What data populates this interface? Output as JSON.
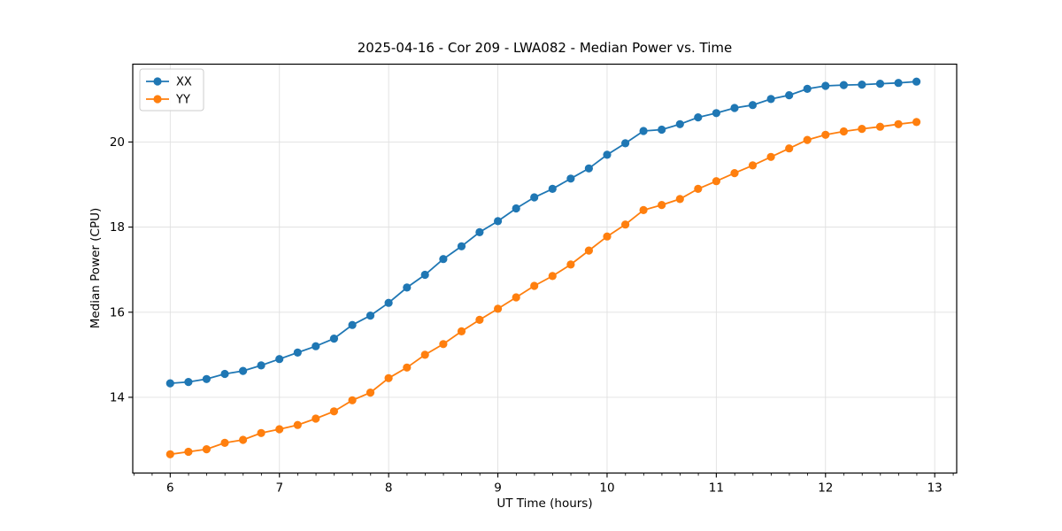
{
  "chart_data": {
    "type": "line",
    "title": "2025-04-16 - Cor 209 - LWA082 - Median Power vs. Time",
    "xlabel": "UT Time (hours)",
    "ylabel": "Median Power (CPU)",
    "xlim": [
      5.657,
      13.201
    ],
    "ylim": [
      12.22,
      21.83
    ],
    "xticks": [
      6,
      7,
      8,
      9,
      10,
      11,
      12,
      13
    ],
    "yticks": [
      14,
      16,
      18,
      20
    ],
    "x_minor_step": 0.1667,
    "grid": true,
    "grid_color": "#e0e0e0",
    "frame_color": "#000000",
    "legend_position": "upper-left",
    "x": [
      6.0,
      6.167,
      6.333,
      6.5,
      6.667,
      6.833,
      7.0,
      7.167,
      7.333,
      7.5,
      7.667,
      7.833,
      8.0,
      8.167,
      8.333,
      8.5,
      8.667,
      8.833,
      9.0,
      9.167,
      9.333,
      9.5,
      9.667,
      9.833,
      10.0,
      10.167,
      10.333,
      10.5,
      10.667,
      10.833,
      11.0,
      11.167,
      11.333,
      11.5,
      11.667,
      11.833,
      12.0,
      12.167,
      12.333,
      12.5,
      12.667,
      12.833
    ],
    "series": [
      {
        "name": "XX",
        "color": "#1f77b4",
        "marker": "circle",
        "values": [
          14.33,
          14.36,
          14.43,
          14.55,
          14.62,
          14.75,
          14.9,
          15.05,
          15.2,
          15.38,
          15.7,
          15.92,
          16.22,
          16.58,
          16.88,
          17.25,
          17.55,
          17.88,
          18.14,
          18.44,
          18.7,
          18.9,
          19.14,
          19.38,
          19.7,
          19.97,
          20.26,
          20.29,
          20.42,
          20.58,
          20.68,
          20.8,
          20.87,
          21.01,
          21.1,
          21.25,
          21.32,
          21.34,
          21.35,
          21.37,
          21.39,
          21.42
        ]
      },
      {
        "name": "YY",
        "color": "#ff7f0e",
        "marker": "circle",
        "values": [
          12.66,
          12.72,
          12.78,
          12.93,
          13.0,
          13.16,
          13.25,
          13.35,
          13.5,
          13.67,
          13.93,
          14.11,
          14.45,
          14.7,
          15.0,
          15.25,
          15.55,
          15.82,
          16.08,
          16.35,
          16.62,
          16.85,
          17.12,
          17.45,
          17.78,
          18.06,
          18.4,
          18.52,
          18.66,
          18.9,
          19.08,
          19.27,
          19.45,
          19.65,
          19.85,
          20.05,
          20.17,
          20.25,
          20.31,
          20.36,
          20.42,
          20.47
        ]
      }
    ]
  }
}
